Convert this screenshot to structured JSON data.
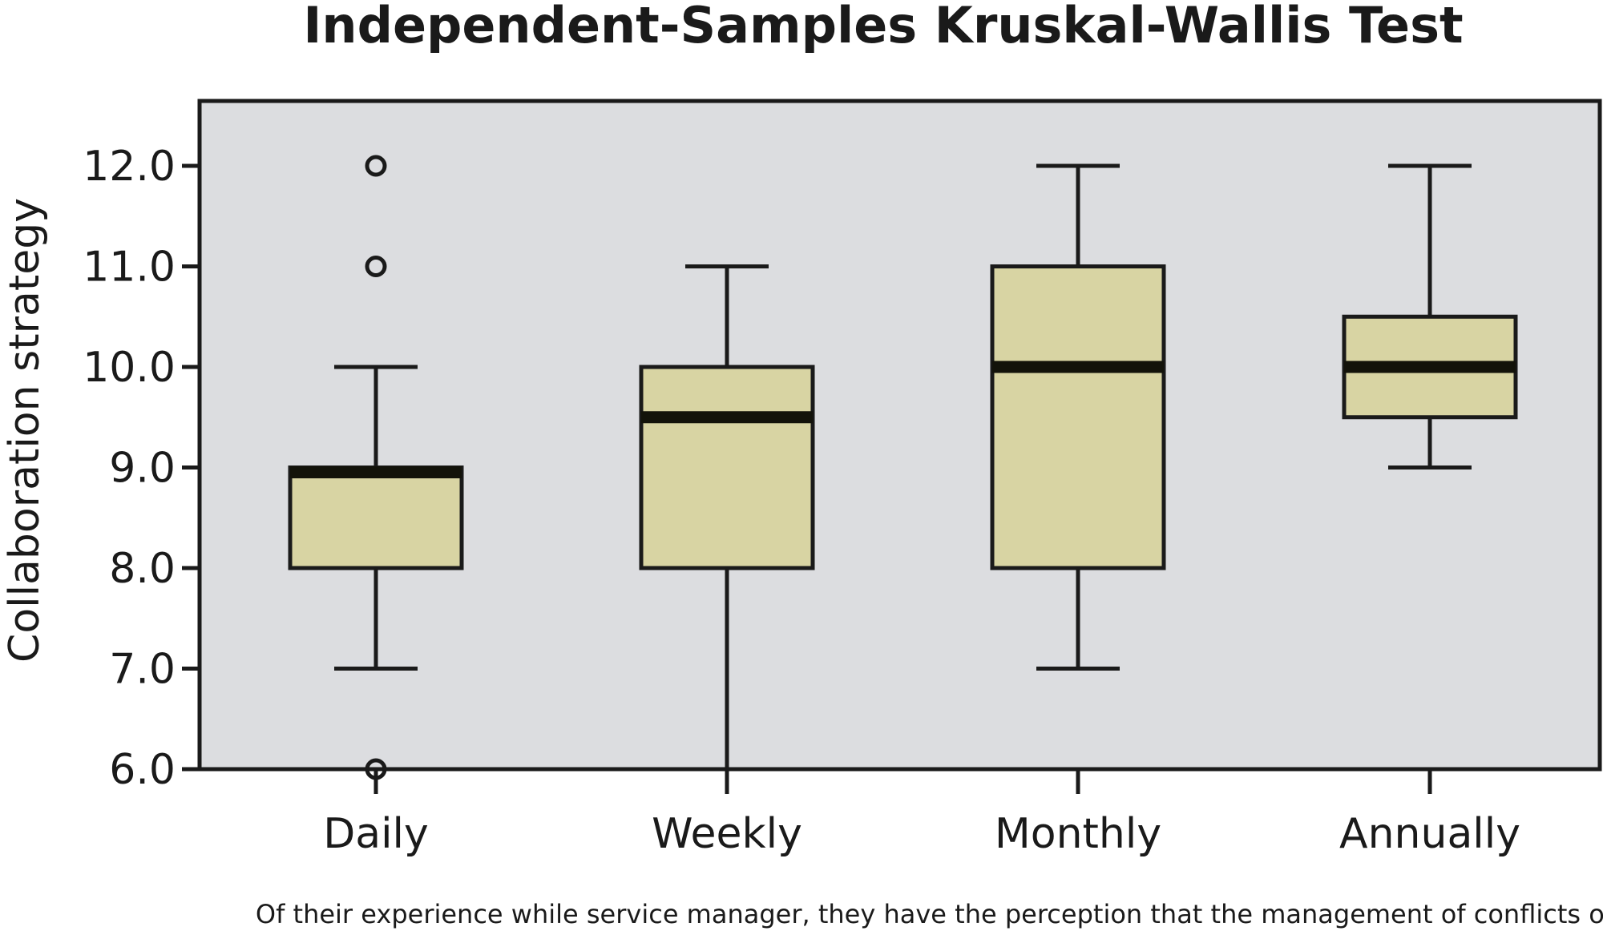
{
  "chart_data": {
    "type": "boxplot",
    "title": "Independent-Samples Kruskal-Wallis Test",
    "xlabel": "Of their experience while service manager, they have the perception that the management of conflicts occurs",
    "ylabel": "Collaboration strategy",
    "ylim": [
      6.0,
      12.6
    ],
    "yticks": [
      "6.0",
      "7.0",
      "8.0",
      "9.0",
      "10.0",
      "11.0",
      "12.0"
    ],
    "grid": false,
    "legend": "none",
    "categories": [
      "Daily",
      "Weekly",
      "Monthly",
      "Annually"
    ],
    "boxes": [
      {
        "category": "Daily",
        "min": 7.0,
        "q1": 8.0,
        "median": 9.0,
        "q3": 9.0,
        "max": 10.0,
        "outliers": [
          6.0,
          11.0,
          12.0
        ]
      },
      {
        "category": "Weekly",
        "min": 6.0,
        "q1": 8.0,
        "median": 9.5,
        "q3": 10.0,
        "max": 11.0,
        "outliers": []
      },
      {
        "category": "Monthly",
        "min": 7.0,
        "q1": 8.0,
        "median": 10.0,
        "q3": 11.0,
        "max": 12.0,
        "outliers": []
      },
      {
        "category": "Annually",
        "min": 9.0,
        "q1": 9.5,
        "median": 10.0,
        "q3": 10.5,
        "max": 12.0,
        "outliers": []
      }
    ],
    "colors": {
      "plot_background": "#dcdde0",
      "box_fill": "#d8d4a3",
      "line": "#1a1a1a",
      "median": "#13130a"
    }
  }
}
